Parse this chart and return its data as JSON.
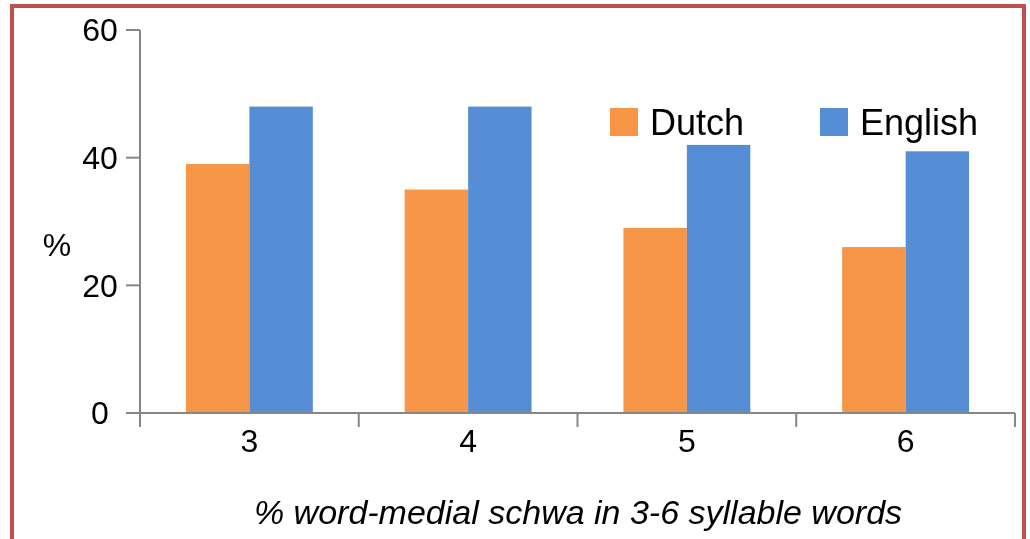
{
  "chart_data": {
    "type": "bar",
    "xlabel": "% word-medial schwa in 3-6 syllable words",
    "ylabel": "%",
    "categories": [
      "3",
      "4",
      "5",
      "6"
    ],
    "series": [
      {
        "name": "Dutch",
        "color": "#f79646",
        "values": [
          39,
          35,
          29,
          26
        ]
      },
      {
        "name": "English",
        "color": "#558ed5",
        "values": [
          48,
          48,
          42,
          41
        ]
      }
    ],
    "ylim": [
      0,
      60
    ],
    "yticks": [
      0,
      20,
      40,
      60
    ],
    "grid": false,
    "legend": "top right"
  }
}
